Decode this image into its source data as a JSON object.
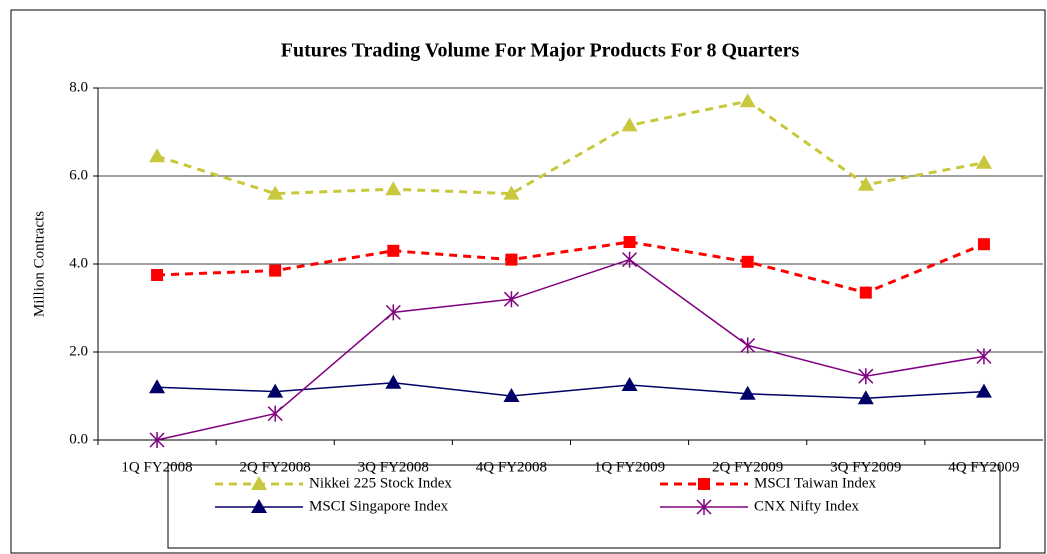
{
  "chart_data": {
    "type": "line",
    "title": "Futures Trading Volume For Major Products For 8 Quarters",
    "y_label": "Million Contracts",
    "categories": [
      "1Q FY2008",
      "2Q FY2008",
      "3Q FY2008",
      "4Q FY2008",
      "1Q FY2009",
      "2Q FY2009",
      "3Q FY2009",
      "4Q FY2009"
    ],
    "series": [
      {
        "name": "Nikkei 225 Stock Index",
        "color": "#c8c83c",
        "marker": "triangle",
        "dashed": true,
        "values": [
          6.45,
          5.6,
          5.7,
          5.6,
          7.15,
          7.7,
          5.8,
          6.3
        ]
      },
      {
        "name": "MSCI Taiwan Index",
        "color": "#ff0000",
        "marker": "square",
        "dashed": true,
        "values": [
          3.75,
          3.85,
          4.3,
          4.1,
          4.5,
          4.05,
          3.35,
          4.45
        ]
      },
      {
        "name": "MSCI Singapore Index",
        "color": "#000066",
        "marker": "triangle",
        "dashed": false,
        "values": [
          1.2,
          1.1,
          1.3,
          1.0,
          1.25,
          1.05,
          0.95,
          1.1
        ]
      },
      {
        "name": "CNX Nifty Index",
        "color": "#800080",
        "marker": "star",
        "dashed": false,
        "values": [
          0,
          0.6,
          2.9,
          3.2,
          4.1,
          2.15,
          1.45,
          1.9
        ]
      }
    ],
    "ylim": [
      0,
      8
    ],
    "yticks": [
      {
        "value": 0,
        "label": "0.0"
      },
      {
        "value": 2,
        "label": "2.0"
      },
      {
        "value": 4,
        "label": "4.0"
      },
      {
        "value": 6,
        "label": "6.0"
      },
      {
        "value": 8,
        "label": "8.0"
      }
    ],
    "grid": true,
    "legend": "bottom"
  }
}
